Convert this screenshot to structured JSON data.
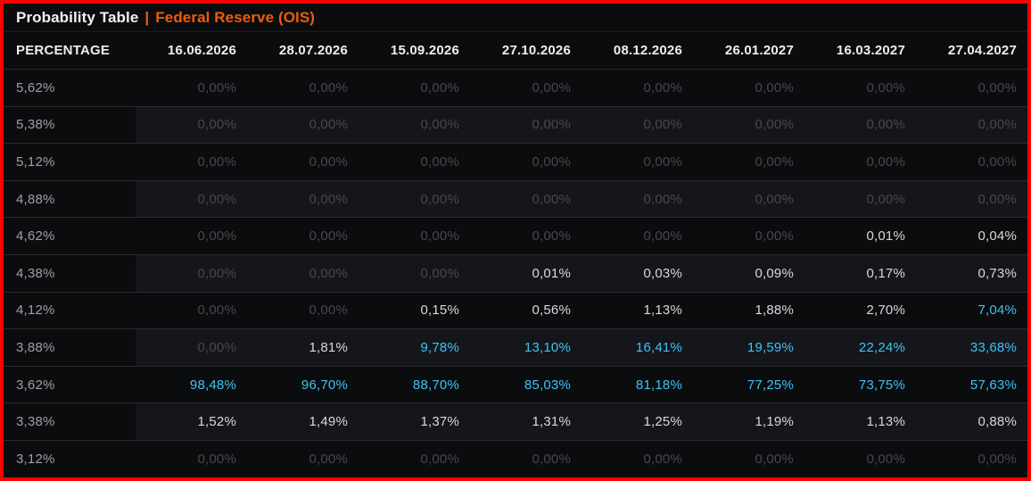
{
  "header": {
    "title": "Probability Table",
    "separator": "|",
    "subtitle": "Federal Reserve (OIS)"
  },
  "table": {
    "columns": [
      "PERCENTAGE",
      "16.06.2026",
      "28.07.2026",
      "15.09.2026",
      "27.10.2026",
      "08.12.2026",
      "26.01.2027",
      "16.03.2027",
      "27.04.2027"
    ],
    "rows": [
      {
        "label": "5,62%",
        "values": [
          "0,00%",
          "0,00%",
          "0,00%",
          "0,00%",
          "0,00%",
          "0,00%",
          "0,00%",
          "0,00%"
        ],
        "styles": [
          "zero",
          "zero",
          "zero",
          "zero",
          "zero",
          "zero",
          "zero",
          "zero"
        ]
      },
      {
        "label": "5,38%",
        "values": [
          "0,00%",
          "0,00%",
          "0,00%",
          "0,00%",
          "0,00%",
          "0,00%",
          "0,00%",
          "0,00%"
        ],
        "styles": [
          "zero",
          "zero",
          "zero",
          "zero",
          "zero",
          "zero",
          "zero",
          "zero"
        ]
      },
      {
        "label": "5,12%",
        "values": [
          "0,00%",
          "0,00%",
          "0,00%",
          "0,00%",
          "0,00%",
          "0,00%",
          "0,00%",
          "0,00%"
        ],
        "styles": [
          "zero",
          "zero",
          "zero",
          "zero",
          "zero",
          "zero",
          "zero",
          "zero"
        ]
      },
      {
        "label": "4,88%",
        "values": [
          "0,00%",
          "0,00%",
          "0,00%",
          "0,00%",
          "0,00%",
          "0,00%",
          "0,00%",
          "0,00%"
        ],
        "styles": [
          "zero",
          "zero",
          "zero",
          "zero",
          "zero",
          "zero",
          "zero",
          "zero"
        ]
      },
      {
        "label": "4,62%",
        "values": [
          "0,00%",
          "0,00%",
          "0,00%",
          "0,00%",
          "0,00%",
          "0,00%",
          "0,01%",
          "0,04%"
        ],
        "styles": [
          "zero",
          "zero",
          "zero",
          "zero",
          "zero",
          "zero",
          "val",
          "val"
        ]
      },
      {
        "label": "4,38%",
        "values": [
          "0,00%",
          "0,00%",
          "0,00%",
          "0,01%",
          "0,03%",
          "0,09%",
          "0,17%",
          "0,73%"
        ],
        "styles": [
          "zero",
          "zero",
          "zero",
          "val",
          "val",
          "val",
          "val",
          "val"
        ]
      },
      {
        "label": "4,12%",
        "values": [
          "0,00%",
          "0,00%",
          "0,15%",
          "0,56%",
          "1,13%",
          "1,88%",
          "2,70%",
          "7,04%"
        ],
        "styles": [
          "zero",
          "zero",
          "val",
          "val",
          "val",
          "val",
          "val",
          "hot"
        ]
      },
      {
        "label": "3,88%",
        "values": [
          "0,00%",
          "1,81%",
          "9,78%",
          "13,10%",
          "16,41%",
          "19,59%",
          "22,24%",
          "33,68%"
        ],
        "styles": [
          "zero",
          "val",
          "hot",
          "hot",
          "hot",
          "hot",
          "hot",
          "hot"
        ]
      },
      {
        "label": "3,62%",
        "values": [
          "98,48%",
          "96,70%",
          "88,70%",
          "85,03%",
          "81,18%",
          "77,25%",
          "73,75%",
          "57,63%"
        ],
        "styles": [
          "hot",
          "hot",
          "hot",
          "hot",
          "hot",
          "hot",
          "hot",
          "hot"
        ]
      },
      {
        "label": "3,38%",
        "values": [
          "1,52%",
          "1,49%",
          "1,37%",
          "1,31%",
          "1,25%",
          "1,19%",
          "1,13%",
          "0,88%"
        ],
        "styles": [
          "val",
          "val",
          "val",
          "val",
          "val",
          "val",
          "val",
          "val"
        ]
      },
      {
        "label": "3,12%",
        "values": [
          "0,00%",
          "0,00%",
          "0,00%",
          "0,00%",
          "0,00%",
          "0,00%",
          "0,00%",
          "0,00%"
        ],
        "styles": [
          "zero",
          "zero",
          "zero",
          "zero",
          "zero",
          "zero",
          "zero",
          "zero"
        ]
      }
    ]
  },
  "colors": {
    "bg": "#0b0c0e",
    "stripe": "#15161b",
    "frame_border": "#ff0000",
    "orange": "#eb5d0c",
    "cyan": "#3fc3f2",
    "value_white": "#d7d9dc",
    "zero_gray": "#46484d",
    "label_gray": "#9da0a5",
    "header_text": "#eceeef",
    "title_white": "#f1f2f3"
  }
}
